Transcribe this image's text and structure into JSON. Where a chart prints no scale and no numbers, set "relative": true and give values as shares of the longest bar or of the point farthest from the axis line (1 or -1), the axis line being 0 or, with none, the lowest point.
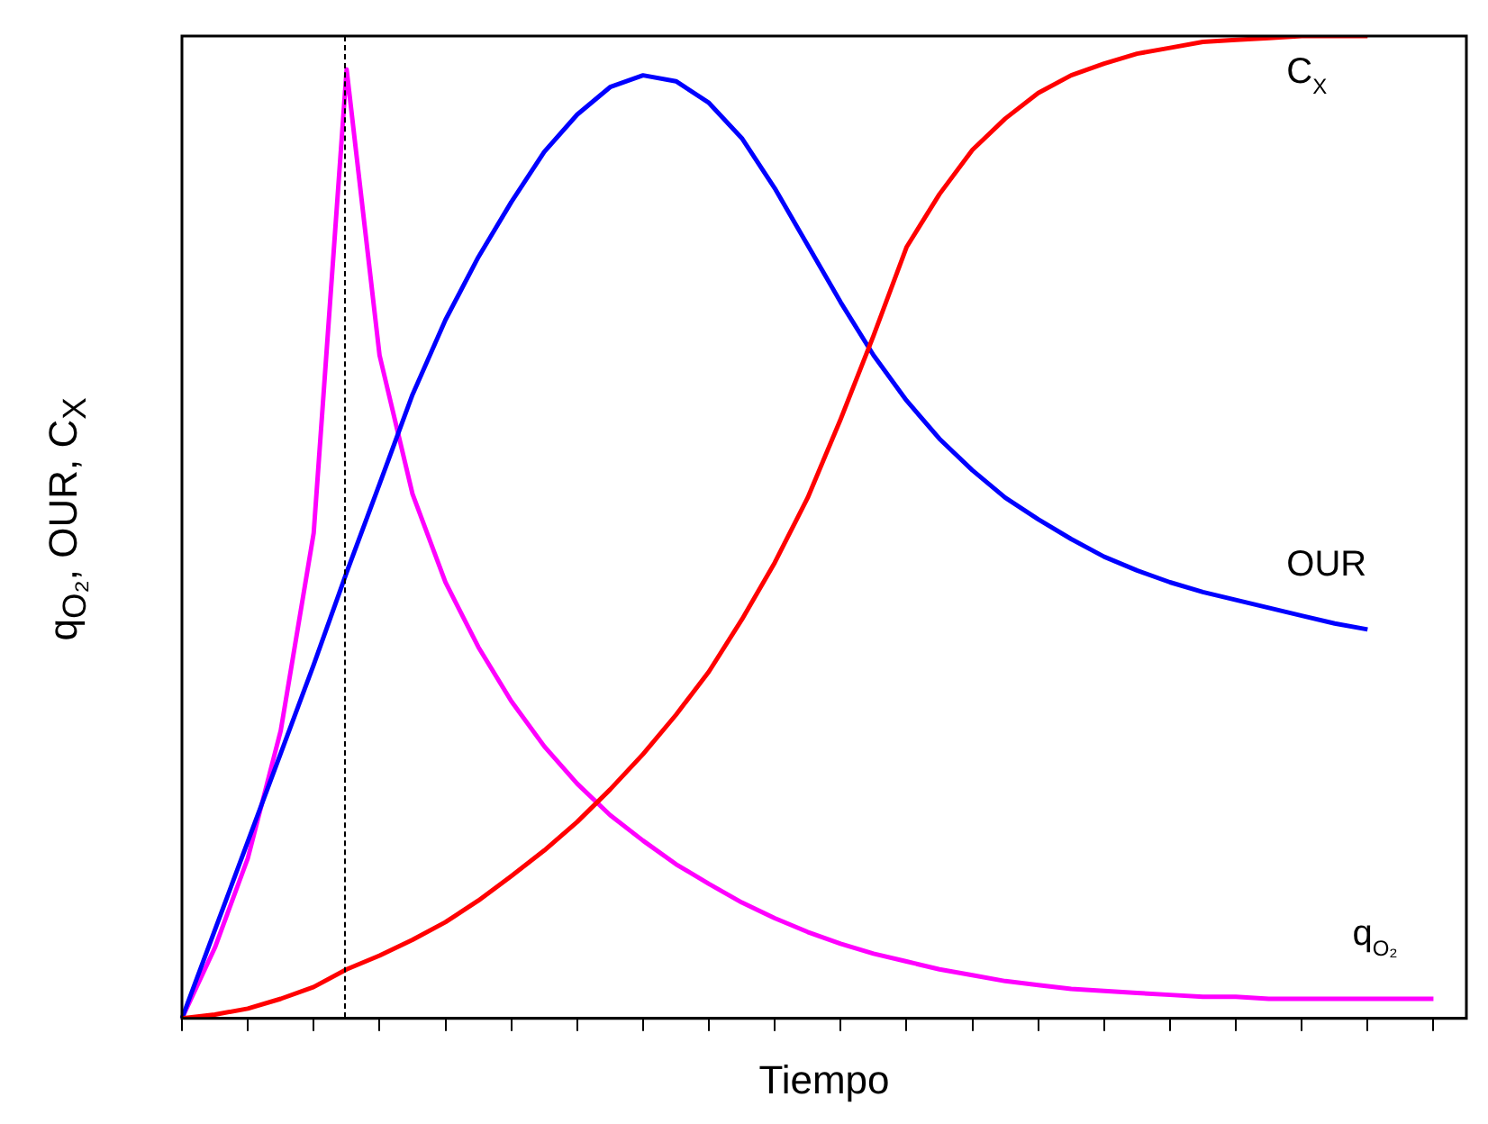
{
  "chart_data": {
    "type": "line",
    "relative": true,
    "xlabel": "Tiempo",
    "ylabel": "q$_{O₂}$, OUR, C$_{X}$",
    "legend": false,
    "grid": false,
    "marker": "none",
    "line_style": "solid",
    "categories": [
      null,
      null,
      null,
      null,
      null,
      null,
      null,
      null,
      null,
      null,
      null,
      null,
      null,
      null,
      null,
      null,
      null,
      null,
      null,
      null,
      null,
      null,
      null,
      null,
      null,
      null,
      null,
      null,
      null,
      null,
      null,
      null,
      null,
      null,
      null,
      null,
      null,
      null,
      null,
      null
    ],
    "series": [
      {
        "name": "C$_{X}$",
        "color": "#ff0000",
        "values": [
          0,
          0.004,
          0.01,
          0.02,
          0.032,
          0.05,
          0.064,
          0.08,
          0.098,
          0.12,
          0.145,
          0.171,
          0.2,
          0.233,
          0.269,
          0.309,
          0.353,
          0.406,
          0.464,
          0.53,
          0.61,
          0.695,
          0.785,
          0.839,
          0.884,
          0.916,
          0.942,
          0.96,
          0.972,
          0.982,
          0.988,
          0.994,
          0.996,
          0.998,
          1,
          1,
          1,
          null,
          null,
          null
        ]
      },
      {
        "name": "OUR",
        "color": "#0000ff",
        "values": [
          0,
          0.09,
          0.18,
          0.27,
          0.36,
          0.454,
          0.544,
          0.635,
          0.711,
          0.775,
          0.831,
          0.882,
          0.92,
          0.948,
          0.96,
          0.954,
          0.932,
          0.896,
          0.845,
          0.787,
          0.729,
          0.675,
          0.629,
          0.59,
          0.558,
          0.53,
          0.508,
          0.488,
          0.47,
          0.456,
          0.444,
          0.434,
          0.426,
          0.418,
          0.41,
          0.402,
          0.396,
          null,
          null,
          null
        ]
      },
      {
        "name": "q$_{O₂}$",
        "color": "#ff00ff",
        "values": [
          0,
          0.072,
          0.163,
          0.293,
          0.494,
          0.966,
          0.675,
          0.534,
          0.444,
          0.378,
          0.323,
          0.277,
          0.239,
          0.207,
          0.181,
          0.157,
          0.137,
          0.118,
          0.102,
          0.088,
          0.076,
          0.066,
          0.058,
          0.05,
          0.044,
          0.038,
          0.034,
          0.03,
          0.028,
          0.026,
          0.024,
          0.022,
          0.022,
          0.02,
          0.02,
          0.02,
          0.02,
          0.02,
          0.02,
          null
        ]
      }
    ]
  }
}
